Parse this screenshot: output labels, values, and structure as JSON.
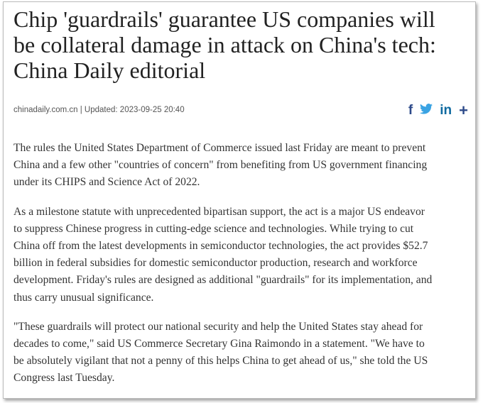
{
  "article": {
    "title_lines": [
      "Chip 'guardrails' guarantee US companies will",
      "be collateral damage in attack on China's tech:",
      "China Daily editorial"
    ],
    "meta": "chinadaily.com.cn | Updated: 2023-09-25 20:40",
    "share": {
      "facebook": "f",
      "twitter": "🐦",
      "linkedin": "in",
      "more": "+"
    },
    "paragraphs": [
      [
        "The rules the United States Department of Commerce issued last Friday are meant to prevent",
        "China and a few other \"countries of concern\" from benefiting from US government financing",
        "under its CHIPS and Science Act of 2022."
      ],
      [
        "As a milestone statute with unprecedented bipartisan support, the act is a major US endeavor",
        "to suppress Chinese progress in cutting-edge science and technologies. While trying to cut",
        "China off from the latest developments in semiconductor technologies, the act provides $52.7",
        "billion in federal subsidies for domestic semiconductor production, research and workforce",
        "development. Friday's rules are designed as additional \"guardrails\" for its implementation, and",
        "thus carry unusual significance."
      ],
      [
        "\"These guardrails will protect our national security and help the United States stay ahead for",
        "decades to come,\" said US Commerce Secretary Gina Raimondo in a statement. \"We have to",
        "be absolutely vigilant that not a penny of this helps China to get ahead of us,\" she told the US",
        "Congress last Tuesday."
      ]
    ]
  }
}
